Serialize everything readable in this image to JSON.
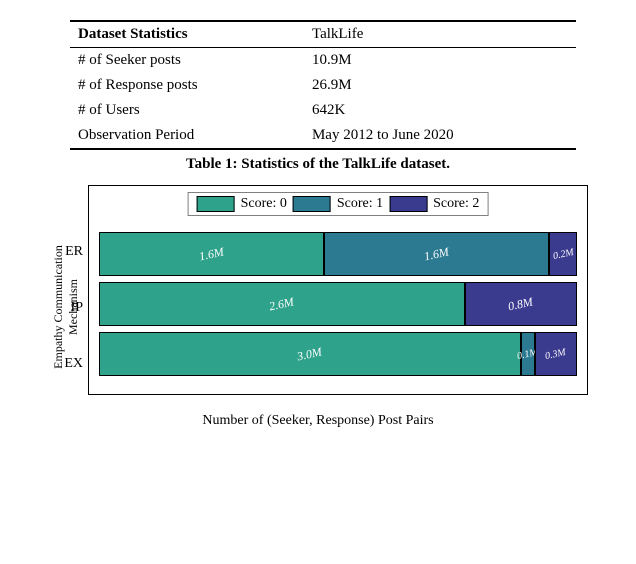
{
  "table": {
    "header_left": "Dataset Statistics",
    "header_right": "TalkLife",
    "rows": [
      {
        "label": "# of Seeker posts",
        "value": "10.9M"
      },
      {
        "label": "# of Response posts",
        "value": "26.9M"
      },
      {
        "label": "# of Users",
        "value": "642K"
      },
      {
        "label": "Observation Period",
        "value": "May 2012 to June 2020"
      }
    ],
    "caption": "Table 1: Statistics of the TalkLife dataset."
  },
  "chart": {
    "type": "stacked-bar-horizontal",
    "ylabel": "Empathy Communication\nMechanism",
    "xlabel": "Number of (Seeker, Response) Post Pairs",
    "max_value": 3.4,
    "legend": [
      {
        "label": "Score: 0",
        "color": "#2ea28a"
      },
      {
        "label": "Score: 1",
        "color": "#2c7a91"
      },
      {
        "label": "Score: 2",
        "color": "#3a3a8f"
      }
    ],
    "categories": [
      {
        "name": "ER",
        "segments": [
          {
            "value": 1.6,
            "label": "1.6M",
            "color": "#2ea28a"
          },
          {
            "value": 1.6,
            "label": "1.6M",
            "color": "#2c7a91"
          },
          {
            "value": 0.2,
            "label": "0.2M",
            "color": "#3a3a8f",
            "tiny": true
          }
        ]
      },
      {
        "name": "IP",
        "segments": [
          {
            "value": 2.6,
            "label": "2.6M",
            "color": "#2ea28a"
          },
          {
            "value": 0.0,
            "label": "",
            "color": "#2c7a91",
            "hidden": true
          },
          {
            "value": 0.8,
            "label": "0.8M",
            "color": "#3a3a8f"
          }
        ]
      },
      {
        "name": "EX",
        "segments": [
          {
            "value": 3.0,
            "label": "3.0M",
            "color": "#2ea28a"
          },
          {
            "value": 0.1,
            "label": "0.1M",
            "color": "#2c7a91",
            "tiny": true
          },
          {
            "value": 0.3,
            "label": "0.3M",
            "color": "#3a3a8f",
            "tiny": true
          }
        ]
      }
    ],
    "border_color": "#000000",
    "background_color": "#ffffff"
  }
}
